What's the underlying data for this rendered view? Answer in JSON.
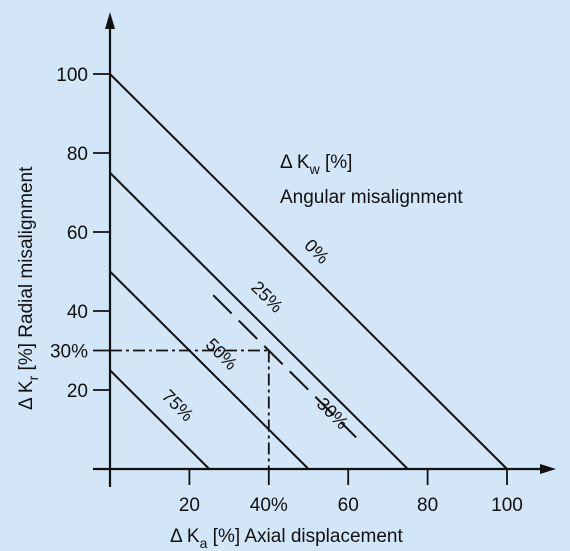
{
  "chart_data": {
    "type": "line",
    "title": "",
    "xlabel": {
      "prefix": "Δ K",
      "sub": "a",
      "suffix": " [%]  Axial displacement"
    },
    "ylabel": {
      "prefix": "Δ K",
      "sub": "r",
      "suffix": " [%]  Radial misalignment"
    },
    "xlim": [
      0,
      110
    ],
    "ylim": [
      0,
      110
    ],
    "x_ticks": [
      {
        "value": 20,
        "label": "20"
      },
      {
        "value": 40,
        "label": "40%"
      },
      {
        "value": 60,
        "label": "60"
      },
      {
        "value": 80,
        "label": "80"
      },
      {
        "value": 100,
        "label": "100"
      }
    ],
    "y_ticks": [
      {
        "value": 20,
        "label": "20"
      },
      {
        "value": 30,
        "label": "30%"
      },
      {
        "value": 40,
        "label": "40"
      },
      {
        "value": 60,
        "label": "60"
      },
      {
        "value": 80,
        "label": "80"
      },
      {
        "value": 100,
        "label": "100"
      }
    ],
    "series": [
      {
        "name": "0%",
        "x": [
          0,
          100
        ],
        "y": [
          100,
          0
        ],
        "label_at": [
          51,
          54
        ]
      },
      {
        "name": "25%",
        "x": [
          0,
          75
        ],
        "y": [
          75,
          0
        ],
        "label_at": [
          38.5,
          42.5
        ]
      },
      {
        "name": "50%",
        "x": [
          0,
          50
        ],
        "y": [
          50,
          0
        ],
        "label_at": [
          27,
          28
        ]
      },
      {
        "name": "75%",
        "x": [
          0,
          25
        ],
        "y": [
          25,
          0
        ],
        "label_at": [
          16,
          15
        ]
      }
    ],
    "reference_line": {
      "name": "30%",
      "x": [
        26,
        62
      ],
      "y": [
        44,
        8
      ],
      "label_at": [
        55,
        13
      ]
    },
    "example_point": {
      "x": 40,
      "y": 30
    },
    "legend": {
      "symbol": {
        "prefix": "Δ K",
        "sub": "w",
        "suffix": "  [%]"
      },
      "text": "Angular misalignment"
    },
    "colors": {
      "background": "#d2e6f8",
      "ink": "#111111"
    }
  }
}
